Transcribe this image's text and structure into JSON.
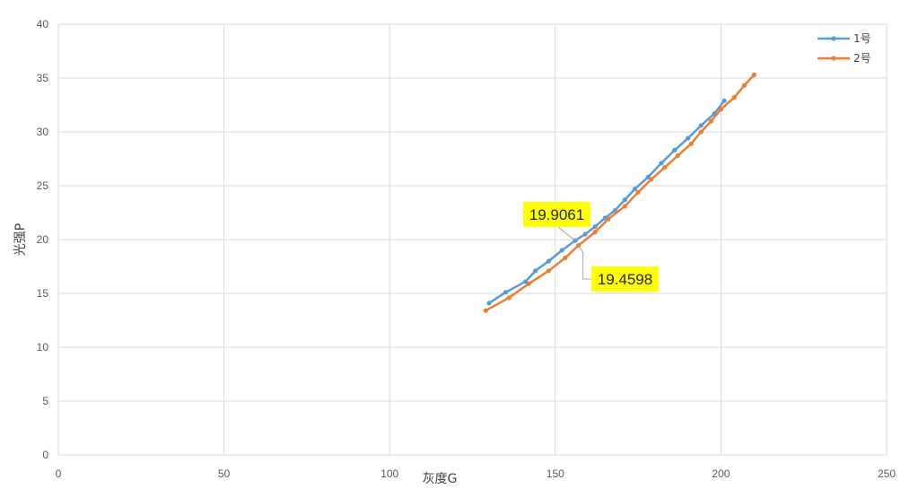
{
  "chart_data": {
    "type": "line",
    "xlabel": "灰度G",
    "ylabel": "光强P",
    "xlim": [
      0,
      250
    ],
    "ylim": [
      0,
      40
    ],
    "x_ticks": [
      0,
      50,
      100,
      150,
      200,
      250
    ],
    "y_ticks": [
      0,
      5,
      10,
      15,
      20,
      25,
      30,
      35,
      40
    ],
    "x_tick_labels": [
      "0",
      "50",
      "100",
      "150",
      "200",
      "250"
    ],
    "y_tick_labels": [
      "0",
      "5",
      "10",
      "15",
      "20",
      "25",
      "30",
      "35",
      "40"
    ],
    "grid": true,
    "legend_position": "top-right",
    "series": [
      {
        "name": "1号",
        "color": "#5b9bd5",
        "x": [
          130,
          135,
          141,
          144,
          148,
          152,
          156,
          159,
          162,
          165,
          168,
          171,
          174,
          178,
          182,
          186,
          190,
          194,
          198,
          201
        ],
        "y": [
          14.1,
          15.1,
          16.1,
          17.1,
          18.0,
          19.0,
          19.9061,
          20.5,
          21.2,
          22.0,
          22.7,
          23.7,
          24.7,
          25.8,
          27.1,
          28.3,
          29.4,
          30.6,
          31.7,
          32.9
        ]
      },
      {
        "name": "2号",
        "color": "#ed7d31",
        "x": [
          129,
          136,
          142,
          148,
          153,
          157,
          162,
          166,
          171,
          175,
          179,
          183,
          187,
          191,
          194,
          197,
          200,
          204,
          207,
          210
        ],
        "y": [
          13.4,
          14.6,
          15.9,
          17.1,
          18.3,
          19.4598,
          20.7,
          21.9,
          23.1,
          24.4,
          25.6,
          26.7,
          27.8,
          28.9,
          30.0,
          31.0,
          32.1,
          33.2,
          34.3,
          35.3
        ]
      }
    ],
    "annotations": [
      {
        "text": "19.9061",
        "series": 0,
        "x": 156,
        "y": 19.9061
      },
      {
        "text": "19.4598",
        "series": 1,
        "x": 157,
        "y": 19.4598
      }
    ]
  }
}
